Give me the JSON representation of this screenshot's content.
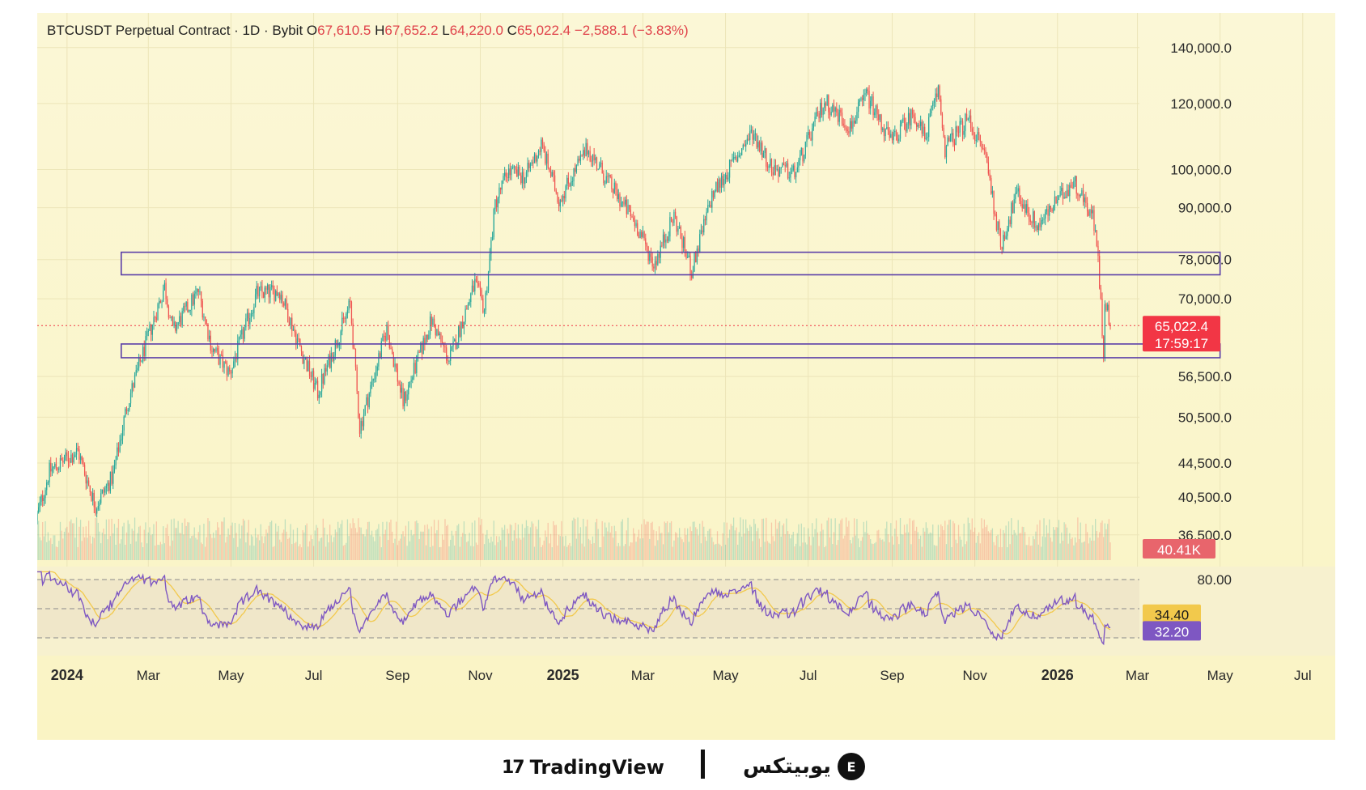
{
  "header": {
    "symbol": "BTCUSDT Perpetual Contract · 1D · Bybit",
    "o_label": "O",
    "o_value": "67,610.5",
    "h_label": "H",
    "h_value": "67,652.2",
    "l_label": "L",
    "l_value": "64,220.0",
    "c_label": "C",
    "c_value": "65,022.4",
    "change": "−2,588.1 (−3.83%)"
  },
  "badges": {
    "price": "65,022.4",
    "countdown": "17:59:17",
    "volume": "40.41K",
    "rsi_ma": "34.40",
    "rsi": "32.20"
  },
  "footer": {
    "tv_name": "TradingView",
    "tv_mark": "17",
    "ubx_name": "یوبیتکس",
    "ubx_mark": "E"
  },
  "colors": {
    "up": "#26a69a",
    "down": "#ef5350",
    "rsi_line": "#7e57c2",
    "rsi_ma": "#f2c94c",
    "zones": "#5b3fa8",
    "price_badge": "#f23645"
  },
  "chart_data": {
    "type": "candlestick",
    "title": "BTCUSDT Perpetual Contract · 1D · Bybit",
    "scale": "log",
    "y_ticks": [
      140000,
      120000,
      100000,
      90000,
      78000,
      70000,
      56500,
      50500,
      44500,
      40500,
      36500
    ],
    "y_tick_labels": [
      "140,000.0",
      "120,000.0",
      "100,000.0",
      "90,000.0",
      "78,000.0",
      "70,000.0",
      "56,500.0",
      "50,500.0",
      "44,500.0",
      "40,500.0",
      "36,500.0"
    ],
    "x_ticks": [
      {
        "date": "2024-01-01",
        "label": "2024",
        "bold": true
      },
      {
        "date": "2024-03-01",
        "label": "Mar"
      },
      {
        "date": "2024-05-01",
        "label": "May"
      },
      {
        "date": "2024-07-01",
        "label": "Jul"
      },
      {
        "date": "2024-09-01",
        "label": "Sep"
      },
      {
        "date": "2024-11-01",
        "label": "Nov"
      },
      {
        "date": "2025-01-01",
        "label": "2025",
        "bold": true
      },
      {
        "date": "2025-03-01",
        "label": "Mar"
      },
      {
        "date": "2025-05-01",
        "label": "May"
      },
      {
        "date": "2025-07-01",
        "label": "Jul"
      },
      {
        "date": "2025-09-01",
        "label": "Sep"
      },
      {
        "date": "2025-11-01",
        "label": "Nov"
      },
      {
        "date": "2026-01-01",
        "label": "2026",
        "bold": true
      },
      {
        "date": "2026-03-01",
        "label": "Mar"
      },
      {
        "date": "2026-05-01",
        "label": "May"
      },
      {
        "date": "2026-07-01",
        "label": "Jul"
      }
    ],
    "x_range": [
      "2023-12-10",
      "2026-07-25"
    ],
    "y_range": [
      34500,
      146000
    ],
    "last_date": "2026-02-10",
    "last_close": 65022.4,
    "price_path": [
      [
        "2023-12-10",
        38000
      ],
      [
        "2023-12-20",
        43500
      ],
      [
        "2024-01-10",
        46000
      ],
      [
        "2024-01-23",
        39500
      ],
      [
        "2024-02-05",
        43000
      ],
      [
        "2024-02-15",
        52000
      ],
      [
        "2024-02-28",
        61000
      ],
      [
        "2024-03-14",
        72500
      ],
      [
        "2024-03-20",
        64000
      ],
      [
        "2024-04-08",
        71500
      ],
      [
        "2024-04-18",
        61000
      ],
      [
        "2024-05-01",
        57000
      ],
      [
        "2024-05-21",
        71000
      ],
      [
        "2024-06-07",
        71500
      ],
      [
        "2024-06-24",
        60000
      ],
      [
        "2024-07-05",
        54000
      ],
      [
        "2024-07-29",
        69000
      ],
      [
        "2024-08-05",
        49000
      ],
      [
        "2024-08-25",
        64500
      ],
      [
        "2024-09-06",
        52600
      ],
      [
        "2024-09-27",
        66000
      ],
      [
        "2024-10-10",
        59000
      ],
      [
        "2024-10-29",
        73000
      ],
      [
        "2024-11-05",
        68000
      ],
      [
        "2024-11-13",
        91000
      ],
      [
        "2024-11-22",
        99500
      ],
      [
        "2024-12-05",
        98000
      ],
      [
        "2024-12-17",
        107000
      ],
      [
        "2024-12-30",
        92000
      ],
      [
        "2025-01-20",
        106000
      ],
      [
        "2025-02-03",
        97500
      ],
      [
        "2025-02-25",
        86000
      ],
      [
        "2025-03-10",
        77000
      ],
      [
        "2025-03-25",
        88000
      ],
      [
        "2025-04-07",
        75500
      ],
      [
        "2025-04-22",
        93000
      ],
      [
        "2025-05-22",
        111000
      ],
      [
        "2025-06-05",
        100500
      ],
      [
        "2025-06-22",
        99000
      ],
      [
        "2025-07-14",
        121000
      ],
      [
        "2025-08-02",
        112500
      ],
      [
        "2025-08-14",
        123000
      ],
      [
        "2025-09-01",
        108000
      ],
      [
        "2025-09-18",
        117000
      ],
      [
        "2025-09-26",
        109000
      ],
      [
        "2025-10-06",
        125000
      ],
      [
        "2025-10-11",
        106000
      ],
      [
        "2025-10-28",
        115000
      ],
      [
        "2025-11-10",
        104000
      ],
      [
        "2025-11-21",
        81000
      ],
      [
        "2025-12-03",
        93500
      ],
      [
        "2025-12-18",
        85500
      ],
      [
        "2026-01-05",
        93000
      ],
      [
        "2026-01-14",
        97000
      ],
      [
        "2026-01-28",
        88000
      ],
      [
        "2026-02-01",
        78500
      ],
      [
        "2026-02-05",
        60100
      ],
      [
        "2026-02-06",
        70500
      ],
      [
        "2026-02-10",
        65022
      ]
    ],
    "zones": [
      {
        "from": "2024-02-10",
        "to": "2026-05-01",
        "low": 74800,
        "high": 79600
      },
      {
        "from": "2024-02-10",
        "to": "2026-05-01",
        "low": 59500,
        "high": 61800
      }
    ],
    "volume_panel": {
      "last": "40.41K"
    },
    "rsi_panel": {
      "levels": [
        80,
        50,
        20
      ],
      "level_labels": [
        "80.00"
      ],
      "last_rsi": 32.2,
      "last_ma": 34.4
    }
  }
}
